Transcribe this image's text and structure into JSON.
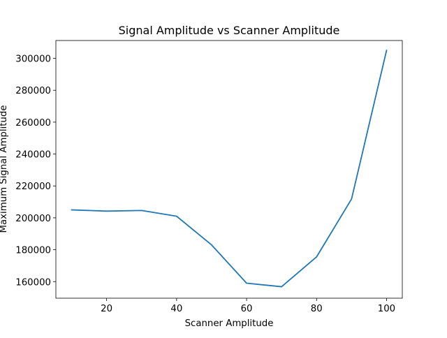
{
  "chart_data": {
    "type": "line",
    "title": "Signal Amplitude vs Scanner Amplitude",
    "xlabel": "Scanner Amplitude",
    "ylabel": "Maximum Signal Amplitude",
    "xlim": [
      5.5,
      104.5
    ],
    "ylim": [
      149600,
      311200
    ],
    "xticks": [
      20,
      40,
      60,
      80,
      100
    ],
    "xtick_labels": [
      "20",
      "40",
      "60",
      "80",
      "100"
    ],
    "yticks": [
      160000,
      180000,
      200000,
      220000,
      240000,
      260000,
      280000,
      300000
    ],
    "ytick_labels": [
      "160000",
      "180000",
      "200000",
      "220000",
      "240000",
      "260000",
      "280000",
      "300000"
    ],
    "grid": false,
    "series": [
      {
        "color": "#1f77b4",
        "x": [
          10,
          20,
          30,
          40,
          50,
          60,
          70,
          80,
          90,
          100
        ],
        "y": [
          205000,
          204200,
          204600,
          201000,
          183000,
          159000,
          156800,
          175500,
          211800,
          305000
        ]
      }
    ]
  }
}
